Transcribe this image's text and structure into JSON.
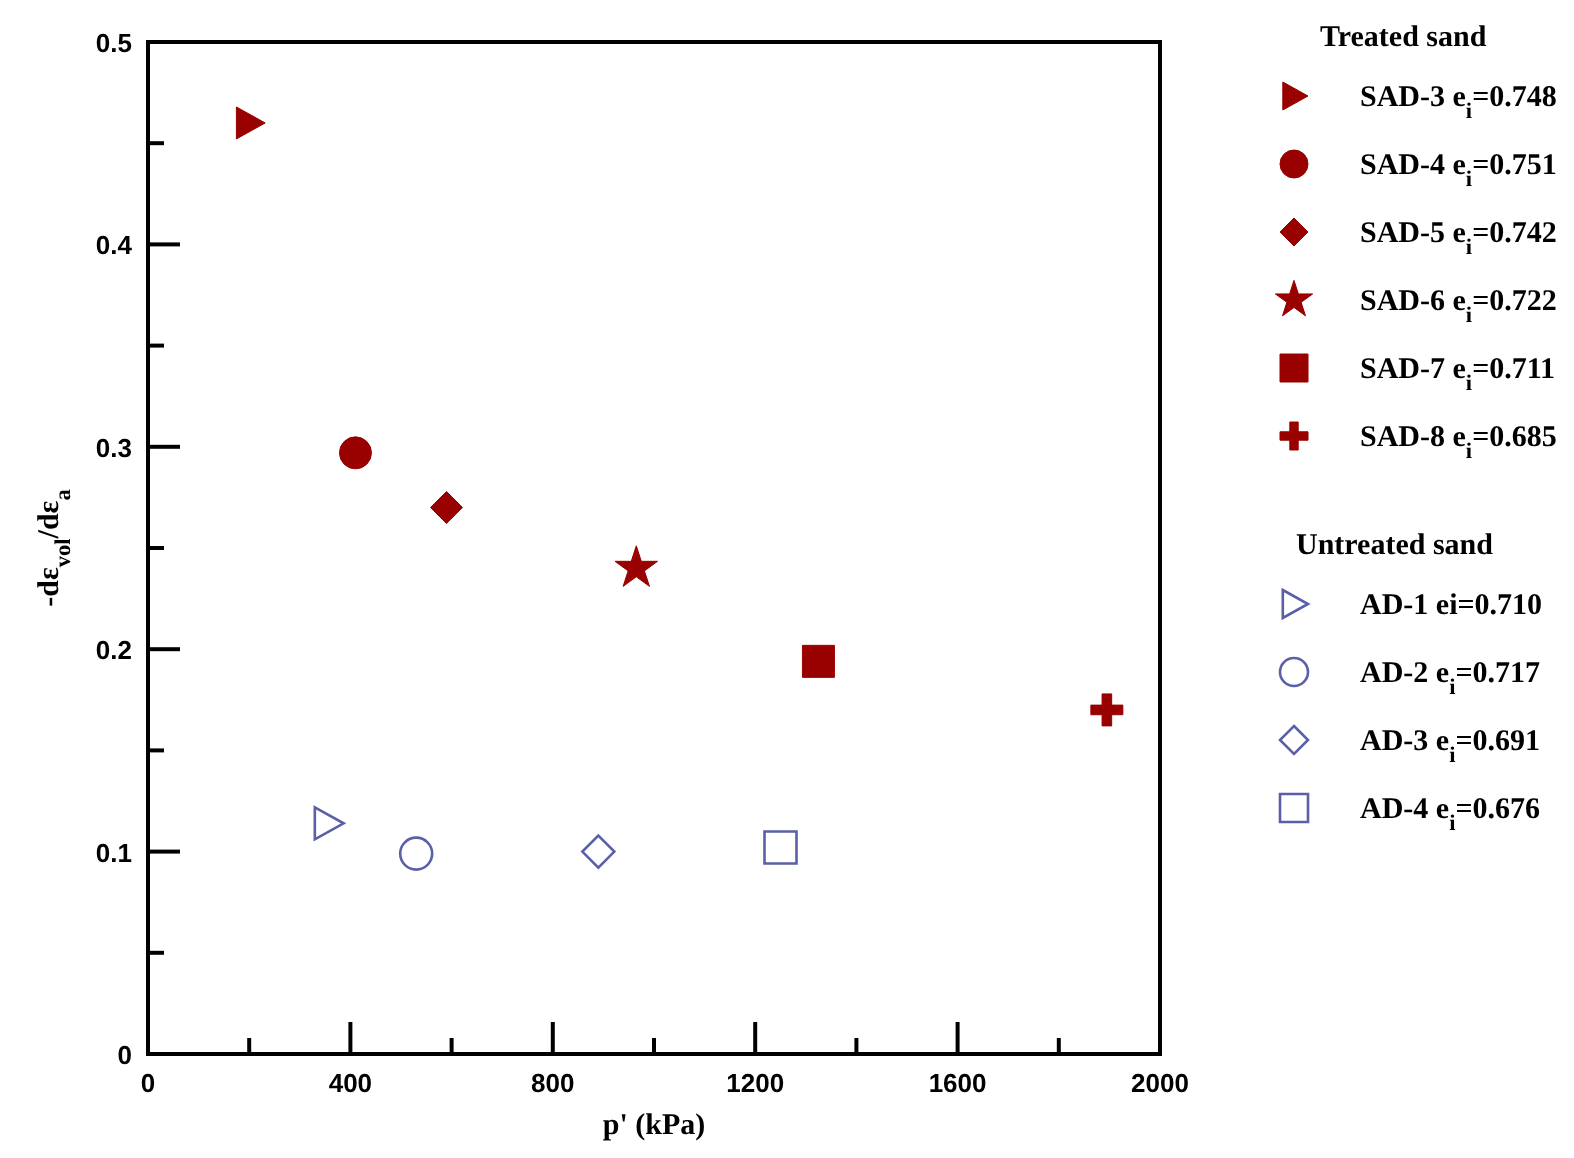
{
  "chart_data": {
    "type": "scatter",
    "xlabel": "p' (kPa)",
    "ylabel": "-dε$_{vol}$/dε$_{a}$",
    "xlim": [
      0,
      2000
    ],
    "ylim": [
      0,
      0.5
    ],
    "xticks": [
      0,
      {
        "value": 200,
        "label": null
      },
      400,
      {
        "value": 600,
        "label": null
      },
      800,
      {
        "value": 1000,
        "label": null
      },
      1200,
      {
        "value": 1400,
        "label": null
      },
      1600,
      {
        "value": 1800,
        "label": null
      },
      2000
    ],
    "yticks": [
      0,
      {
        "value": 0.05,
        "label": null
      },
      0.1,
      {
        "value": 0.15,
        "label": null
      },
      0.2,
      {
        "value": 0.25,
        "label": null
      },
      0.3,
      {
        "value": 0.35,
        "label": null
      },
      0.4,
      {
        "value": 0.45,
        "label": null
      },
      0.5
    ],
    "grid": false,
    "legend": "right",
    "annotations": [
      "Treated sand",
      "Untreated sand"
    ],
    "series": [
      {
        "name": "SAD-3 e$_{i}$=0.748",
        "color": "#990000",
        "marker": "triangle",
        "x": [
          200
        ],
        "values": [
          0.46
        ]
      },
      {
        "name": "SAD-4 e$_{i}$=0.751",
        "color": "#990000",
        "marker": "circle",
        "x": [
          410
        ],
        "values": [
          0.297
        ]
      },
      {
        "name": "SAD-5 e$_{i}$=0.742",
        "color": "#990000",
        "marker": "diamond",
        "x": [
          590
        ],
        "values": [
          0.27
        ]
      },
      {
        "name": "SAD-6 e$_{i}$=0.722",
        "color": "#990000",
        "marker": "star",
        "x": [
          965
        ],
        "values": [
          0.24
        ]
      },
      {
        "name": "SAD-7 e$_{i}$=0.711",
        "color": "#990000",
        "marker": "square",
        "x": [
          1325
        ],
        "values": [
          0.194
        ]
      },
      {
        "name": "SAD-8 e$_{i}$=0.685",
        "color": "#990000",
        "marker": "cross",
        "x": [
          1895
        ],
        "values": [
          0.17
        ]
      },
      {
        "name": "AD-1 ei=0.710",
        "color": "#5a5fa8",
        "marker": "triangle",
        "x": [
          355
        ],
        "values": [
          0.114
        ]
      },
      {
        "name": "AD-2 e$_{i}$=0.717",
        "color": "#5a5fa8",
        "marker": "circle",
        "x": [
          530
        ],
        "values": [
          0.099
        ]
      },
      {
        "name": "AD-3 e$_{i}$=0.691",
        "color": "#5a5fa8",
        "marker": "diamond",
        "x": [
          890
        ],
        "values": [
          0.1
        ]
      },
      {
        "name": "AD-4 e$_{i}$=0.676",
        "color": "#5a5fa8",
        "marker": "square",
        "x": [
          1250
        ],
        "values": [
          0.102
        ]
      }
    ]
  }
}
